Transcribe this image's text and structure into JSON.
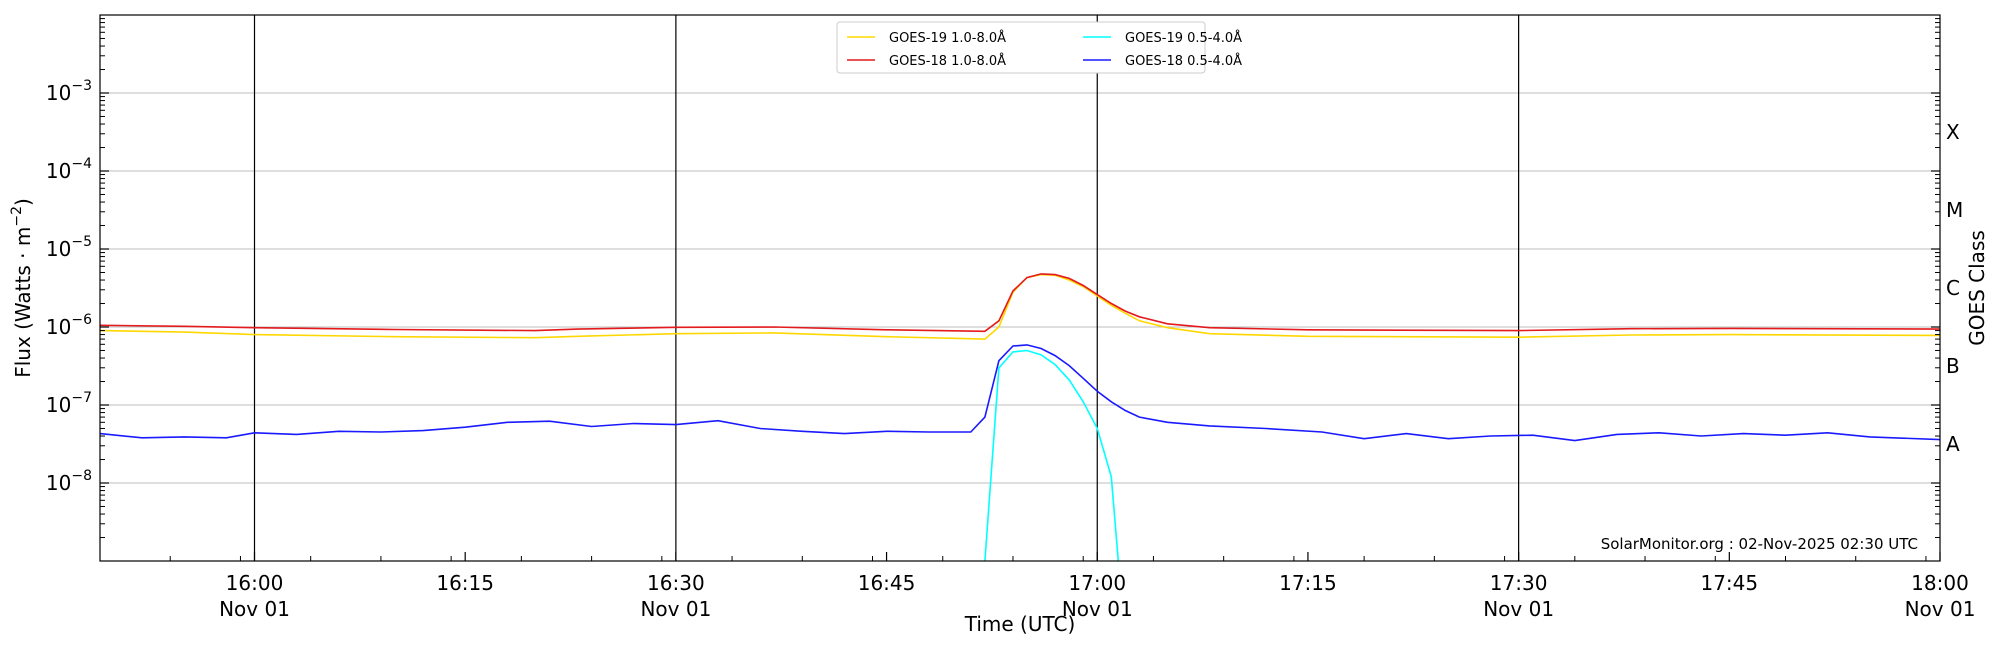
{
  "chart_data": {
    "type": "line",
    "xlabel": "Time (UTC)",
    "ylabel": "Flux (Watts · m⁻²)",
    "y2label": "GOES Class",
    "yscale": "log",
    "ylim": [
      1e-09,
      0.01
    ],
    "xlim": [
      "2025-11-01 15:49:00",
      "2025-11-01 18:00:00"
    ],
    "grid": "horizontal",
    "legend_position": "top-center",
    "watermark": "SolarMonitor.org : 02-Nov-2025 02:30 UTC",
    "x_ticks": [
      {
        "time": "2025-11-01 16:00",
        "label": "16:00",
        "sublabel": "Nov 01",
        "vline": true
      },
      {
        "time": "2025-11-01 16:15",
        "label": "16:15",
        "sublabel": "",
        "vline": false
      },
      {
        "time": "2025-11-01 16:30",
        "label": "16:30",
        "sublabel": "Nov 01",
        "vline": true
      },
      {
        "time": "2025-11-01 16:45",
        "label": "16:45",
        "sublabel": "",
        "vline": false
      },
      {
        "time": "2025-11-01 17:00",
        "label": "17:00",
        "sublabel": "Nov 01",
        "vline": true
      },
      {
        "time": "2025-11-01 17:15",
        "label": "17:15",
        "sublabel": "",
        "vline": false
      },
      {
        "time": "2025-11-01 17:30",
        "label": "17:30",
        "sublabel": "Nov 01",
        "vline": true
      },
      {
        "time": "2025-11-01 17:45",
        "label": "17:45",
        "sublabel": "",
        "vline": false
      },
      {
        "time": "2025-11-01 18:00",
        "label": "18:00",
        "sublabel": "Nov 01",
        "vline": false
      }
    ],
    "y_ticks": [
      {
        "value": 0.001,
        "base": "10",
        "exp": "−3"
      },
      {
        "value": 0.0001,
        "base": "10",
        "exp": "−4"
      },
      {
        "value": 1e-05,
        "base": "10",
        "exp": "−5"
      },
      {
        "value": 1e-06,
        "base": "10",
        "exp": "−6"
      },
      {
        "value": 1e-07,
        "base": "10",
        "exp": "−7"
      },
      {
        "value": 1e-08,
        "base": "10",
        "exp": "−8"
      }
    ],
    "goes_classes": [
      {
        "label": "X",
        "value": 0.000316
      },
      {
        "label": "M",
        "value": 3.16e-05
      },
      {
        "label": "C",
        "value": 3.16e-06
      },
      {
        "label": "B",
        "value": 3.16e-07
      },
      {
        "label": "A",
        "value": 3.16e-08
      }
    ],
    "series": [
      {
        "name": "GOES-19 1.0-8.0Å",
        "color": "#ffd700",
        "points": [
          [
            "2025-11-01 15:49",
            9e-07
          ],
          [
            "2025-11-01 15:55",
            8.6e-07
          ],
          [
            "2025-11-01 16:00",
            8e-07
          ],
          [
            "2025-11-01 16:10",
            7.5e-07
          ],
          [
            "2025-11-01 16:20",
            7.3e-07
          ],
          [
            "2025-11-01 16:23",
            7.6e-07
          ],
          [
            "2025-11-01 16:30",
            8.2e-07
          ],
          [
            "2025-11-01 16:37",
            8.4e-07
          ],
          [
            "2025-11-01 16:45",
            7.5e-07
          ],
          [
            "2025-11-01 16:52",
            7e-07
          ],
          [
            "2025-11-01 16:53",
            1e-06
          ],
          [
            "2025-11-01 16:54",
            2.8e-06
          ],
          [
            "2025-11-01 16:55",
            4.3e-06
          ],
          [
            "2025-11-01 16:56",
            4.7e-06
          ],
          [
            "2025-11-01 16:57",
            4.6e-06
          ],
          [
            "2025-11-01 16:58",
            4e-06
          ],
          [
            "2025-11-01 16:59",
            3.3e-06
          ],
          [
            "2025-11-01 17:00",
            2.5e-06
          ],
          [
            "2025-11-01 17:01",
            1.9e-06
          ],
          [
            "2025-11-01 17:02",
            1.5e-06
          ],
          [
            "2025-11-01 17:03",
            1.2e-06
          ],
          [
            "2025-11-01 17:05",
            9.8e-07
          ],
          [
            "2025-11-01 17:08",
            8.2e-07
          ],
          [
            "2025-11-01 17:15",
            7.6e-07
          ],
          [
            "2025-11-01 17:30",
            7.4e-07
          ],
          [
            "2025-11-01 17:38",
            7.9e-07
          ],
          [
            "2025-11-01 17:45",
            8e-07
          ],
          [
            "2025-11-01 18:00",
            7.8e-07
          ]
        ]
      },
      {
        "name": "GOES-18 1.0-8.0Å",
        "color": "#e41a1c",
        "points": [
          [
            "2025-11-01 15:49",
            1.05e-06
          ],
          [
            "2025-11-01 15:55",
            1.02e-06
          ],
          [
            "2025-11-01 16:00",
            9.8e-07
          ],
          [
            "2025-11-01 16:10",
            9.3e-07
          ],
          [
            "2025-11-01 16:20",
            9e-07
          ],
          [
            "2025-11-01 16:23",
            9.4e-07
          ],
          [
            "2025-11-01 16:30",
            9.9e-07
          ],
          [
            "2025-11-01 16:37",
            1e-06
          ],
          [
            "2025-11-01 16:45",
            9.2e-07
          ],
          [
            "2025-11-01 16:52",
            8.8e-07
          ],
          [
            "2025-11-01 16:53",
            1.2e-06
          ],
          [
            "2025-11-01 16:54",
            2.9e-06
          ],
          [
            "2025-11-01 16:55",
            4.3e-06
          ],
          [
            "2025-11-01 16:56",
            4.8e-06
          ],
          [
            "2025-11-01 16:57",
            4.7e-06
          ],
          [
            "2025-11-01 16:58",
            4.2e-06
          ],
          [
            "2025-11-01 16:59",
            3.4e-06
          ],
          [
            "2025-11-01 17:00",
            2.6e-06
          ],
          [
            "2025-11-01 17:01",
            2e-06
          ],
          [
            "2025-11-01 17:02",
            1.6e-06
          ],
          [
            "2025-11-01 17:03",
            1.35e-06
          ],
          [
            "2025-11-01 17:05",
            1.1e-06
          ],
          [
            "2025-11-01 17:08",
            9.8e-07
          ],
          [
            "2025-11-01 17:15",
            9.2e-07
          ],
          [
            "2025-11-01 17:30",
            9e-07
          ],
          [
            "2025-11-01 17:38",
            9.5e-07
          ],
          [
            "2025-11-01 17:45",
            9.6e-07
          ],
          [
            "2025-11-01 18:00",
            9.4e-07
          ]
        ]
      },
      {
        "name": "GOES-19 0.5-4.0Å",
        "color": "#00ffff",
        "points": [
          [
            "2025-11-01 16:52",
            1e-09
          ],
          [
            "2025-11-01 16:53",
            3e-07
          ],
          [
            "2025-11-01 16:54",
            4.8e-07
          ],
          [
            "2025-11-01 16:55",
            5e-07
          ],
          [
            "2025-11-01 16:56",
            4.4e-07
          ],
          [
            "2025-11-01 16:57",
            3.3e-07
          ],
          [
            "2025-11-01 16:58",
            2.1e-07
          ],
          [
            "2025-11-01 16:59",
            1.1e-07
          ],
          [
            "2025-11-01 17:00",
            5e-08
          ],
          [
            "2025-11-01 17:01",
            1.2e-08
          ],
          [
            "2025-11-01 17:01:30",
            1e-09
          ]
        ]
      },
      {
        "name": "GOES-18 0.5-4.0Å",
        "color": "#1a1aff",
        "points": [
          [
            "2025-11-01 15:49",
            4.3e-08
          ],
          [
            "2025-11-01 15:52",
            3.8e-08
          ],
          [
            "2025-11-01 15:55",
            3.9e-08
          ],
          [
            "2025-11-01 15:58",
            3.8e-08
          ],
          [
            "2025-11-01 16:00",
            4.4e-08
          ],
          [
            "2025-11-01 16:03",
            4.2e-08
          ],
          [
            "2025-11-01 16:06",
            4.6e-08
          ],
          [
            "2025-11-01 16:09",
            4.5e-08
          ],
          [
            "2025-11-01 16:12",
            4.7e-08
          ],
          [
            "2025-11-01 16:15",
            5.2e-08
          ],
          [
            "2025-11-01 16:18",
            6e-08
          ],
          [
            "2025-11-01 16:21",
            6.2e-08
          ],
          [
            "2025-11-01 16:24",
            5.3e-08
          ],
          [
            "2025-11-01 16:27",
            5.8e-08
          ],
          [
            "2025-11-01 16:30",
            5.6e-08
          ],
          [
            "2025-11-01 16:33",
            6.3e-08
          ],
          [
            "2025-11-01 16:36",
            5e-08
          ],
          [
            "2025-11-01 16:39",
            4.6e-08
          ],
          [
            "2025-11-01 16:42",
            4.3e-08
          ],
          [
            "2025-11-01 16:45",
            4.6e-08
          ],
          [
            "2025-11-01 16:48",
            4.5e-08
          ],
          [
            "2025-11-01 16:51",
            4.5e-08
          ],
          [
            "2025-11-01 16:52",
            7e-08
          ],
          [
            "2025-11-01 16:53",
            3.7e-07
          ],
          [
            "2025-11-01 16:54",
            5.7e-07
          ],
          [
            "2025-11-01 16:55",
            5.9e-07
          ],
          [
            "2025-11-01 16:56",
            5.3e-07
          ],
          [
            "2025-11-01 16:57",
            4.3e-07
          ],
          [
            "2025-11-01 16:58",
            3.2e-07
          ],
          [
            "2025-11-01 16:59",
            2.2e-07
          ],
          [
            "2025-11-01 17:00",
            1.5e-07
          ],
          [
            "2025-11-01 17:01",
            1.1e-07
          ],
          [
            "2025-11-01 17:02",
            8.5e-08
          ],
          [
            "2025-11-01 17:03",
            7e-08
          ],
          [
            "2025-11-01 17:05",
            6e-08
          ],
          [
            "2025-11-01 17:08",
            5.4e-08
          ],
          [
            "2025-11-01 17:12",
            5e-08
          ],
          [
            "2025-11-01 17:16",
            4.5e-08
          ],
          [
            "2025-11-01 17:19",
            3.7e-08
          ],
          [
            "2025-11-01 17:22",
            4.3e-08
          ],
          [
            "2025-11-01 17:25",
            3.7e-08
          ],
          [
            "2025-11-01 17:28",
            4e-08
          ],
          [
            "2025-11-01 17:31",
            4.1e-08
          ],
          [
            "2025-11-01 17:34",
            3.5e-08
          ],
          [
            "2025-11-01 17:37",
            4.2e-08
          ],
          [
            "2025-11-01 17:40",
            4.4e-08
          ],
          [
            "2025-11-01 17:43",
            4e-08
          ],
          [
            "2025-11-01 17:46",
            4.3e-08
          ],
          [
            "2025-11-01 17:49",
            4.1e-08
          ],
          [
            "2025-11-01 17:52",
            4.4e-08
          ],
          [
            "2025-11-01 17:55",
            3.9e-08
          ],
          [
            "2025-11-01 18:00",
            3.6e-08
          ]
        ]
      }
    ]
  }
}
